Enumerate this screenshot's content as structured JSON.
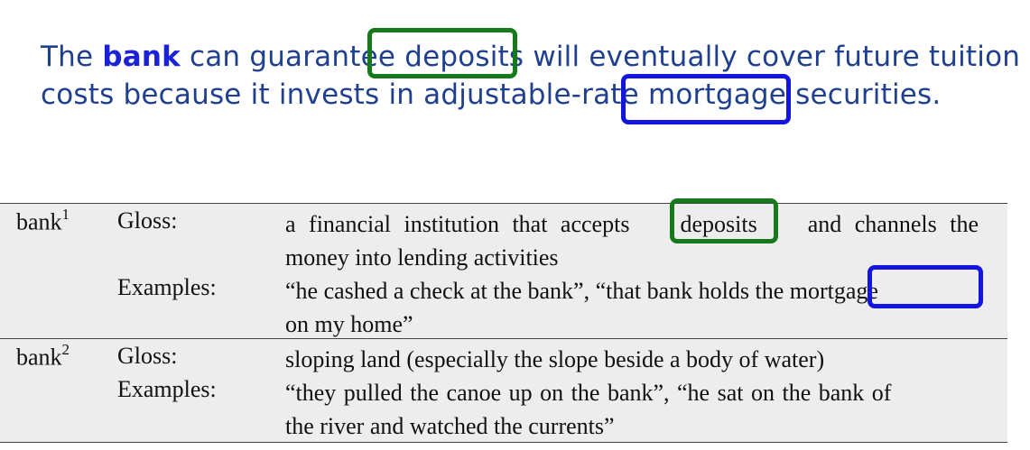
{
  "sentence": {
    "part1": "The ",
    "bold_word": "bank",
    "part2": " can guarantee ",
    "word_deposits": "deposits",
    "part3": " will eventually cover future tuition",
    "part4": "costs because it invests in adjustable-rate ",
    "word_mortgage": "mortgage",
    "part5": " securities."
  },
  "senses": [
    {
      "term": "bank",
      "sense_number": "1",
      "gloss_label": "Gloss:",
      "gloss_line1_a": "a financial institution that accepts",
      "gloss_line1_word": "deposits",
      "gloss_line1_b": "and channels the",
      "gloss_line2": "money into lending activities",
      "examples_label": "Examples:",
      "examples_line1_a": "“he cashed a check at the bank”, “that bank holds the ",
      "examples_line1_word": "mortgage",
      "examples_line2": "on my home”"
    },
    {
      "term": "bank",
      "sense_number": "2",
      "gloss_label": "Gloss:",
      "gloss_line1": "sloping land (especially the slope beside a body of water)",
      "examples_label": "Examples:",
      "examples_line1": "“they pulled the canoe up on the bank”, “he sat on the bank of",
      "examples_line2": "the river and watched the currents”"
    }
  ],
  "colors": {
    "sentence_text": "#1f3f8f",
    "bold_text": "#1a22d8",
    "green_box": "#167a1a",
    "blue_box": "#1414e0",
    "table_bg": "#ededed"
  }
}
